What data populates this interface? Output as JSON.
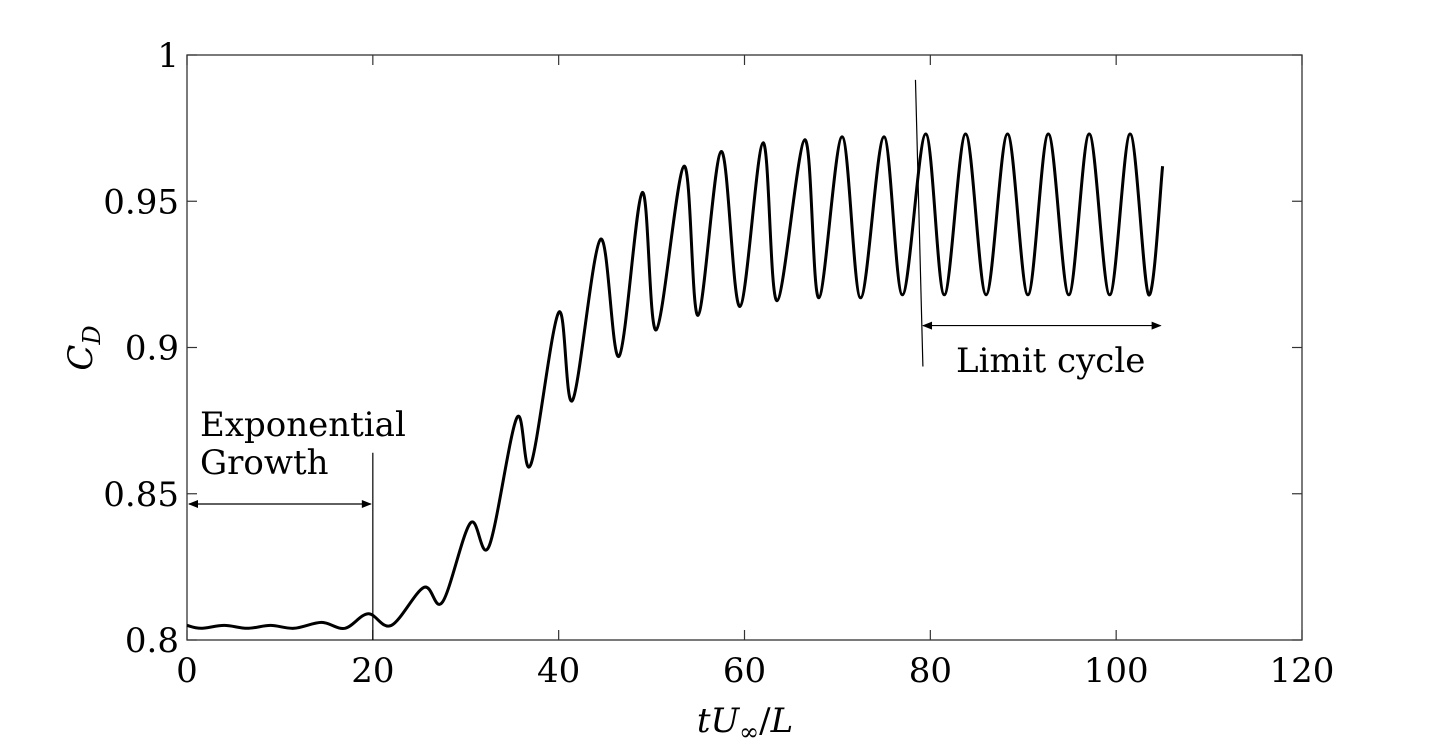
{
  "chart_data": {
    "type": "line",
    "title": "",
    "xlabel": "tU∞/L",
    "ylabel": "C_D",
    "xlim": [
      0,
      120
    ],
    "ylim": [
      0.8,
      1.0
    ],
    "x_ticks": [
      0,
      20,
      40,
      60,
      80,
      100,
      120
    ],
    "x_tick_labels": [
      "0",
      "20",
      "40",
      "60",
      "80",
      "100",
      "120"
    ],
    "y_ticks": [
      0.8,
      0.85,
      0.9,
      0.95,
      1.0
    ],
    "y_tick_labels": [
      "0.8",
      "0.85",
      "0.9",
      "0.95",
      "1"
    ],
    "grid": false,
    "series": [
      {
        "x": [
          0,
          1.5,
          4,
          6.5,
          9,
          11.5,
          14.5,
          17,
          19.5,
          22,
          25.5,
          27.5,
          30.5,
          32.5,
          35.5,
          37,
          40,
          41.5,
          44.5,
          46.5,
          49,
          50.5,
          53.5,
          55,
          57.5,
          59.5,
          62,
          63.5,
          66.5,
          68,
          70.5,
          72.5,
          75,
          77,
          79.5,
          81.5,
          83.8,
          86,
          88.3,
          90.5,
          92.7,
          94.9,
          97.1,
          99.3,
          101.5,
          103.5,
          105
        ],
        "y": [
          0.805,
          0.804,
          0.805,
          0.804,
          0.805,
          0.804,
          0.806,
          0.804,
          0.809,
          0.805,
          0.818,
          0.813,
          0.84,
          0.832,
          0.876,
          0.86,
          0.912,
          0.882,
          0.937,
          0.897,
          0.953,
          0.906,
          0.962,
          0.911,
          0.967,
          0.914,
          0.97,
          0.916,
          0.971,
          0.917,
          0.972,
          0.917,
          0.972,
          0.918,
          0.973,
          0.918,
          0.973,
          0.918,
          0.973,
          0.918,
          0.973,
          0.918,
          0.973,
          0.918,
          0.973,
          0.918,
          0.962
        ]
      }
    ],
    "annotations": [
      {
        "text_lines": [
          "Exponential",
          "Growth"
        ],
        "span": [
          0,
          20
        ]
      },
      {
        "text_lines": [
          "Limit cycle"
        ],
        "span": [
          79,
          105
        ]
      }
    ]
  }
}
